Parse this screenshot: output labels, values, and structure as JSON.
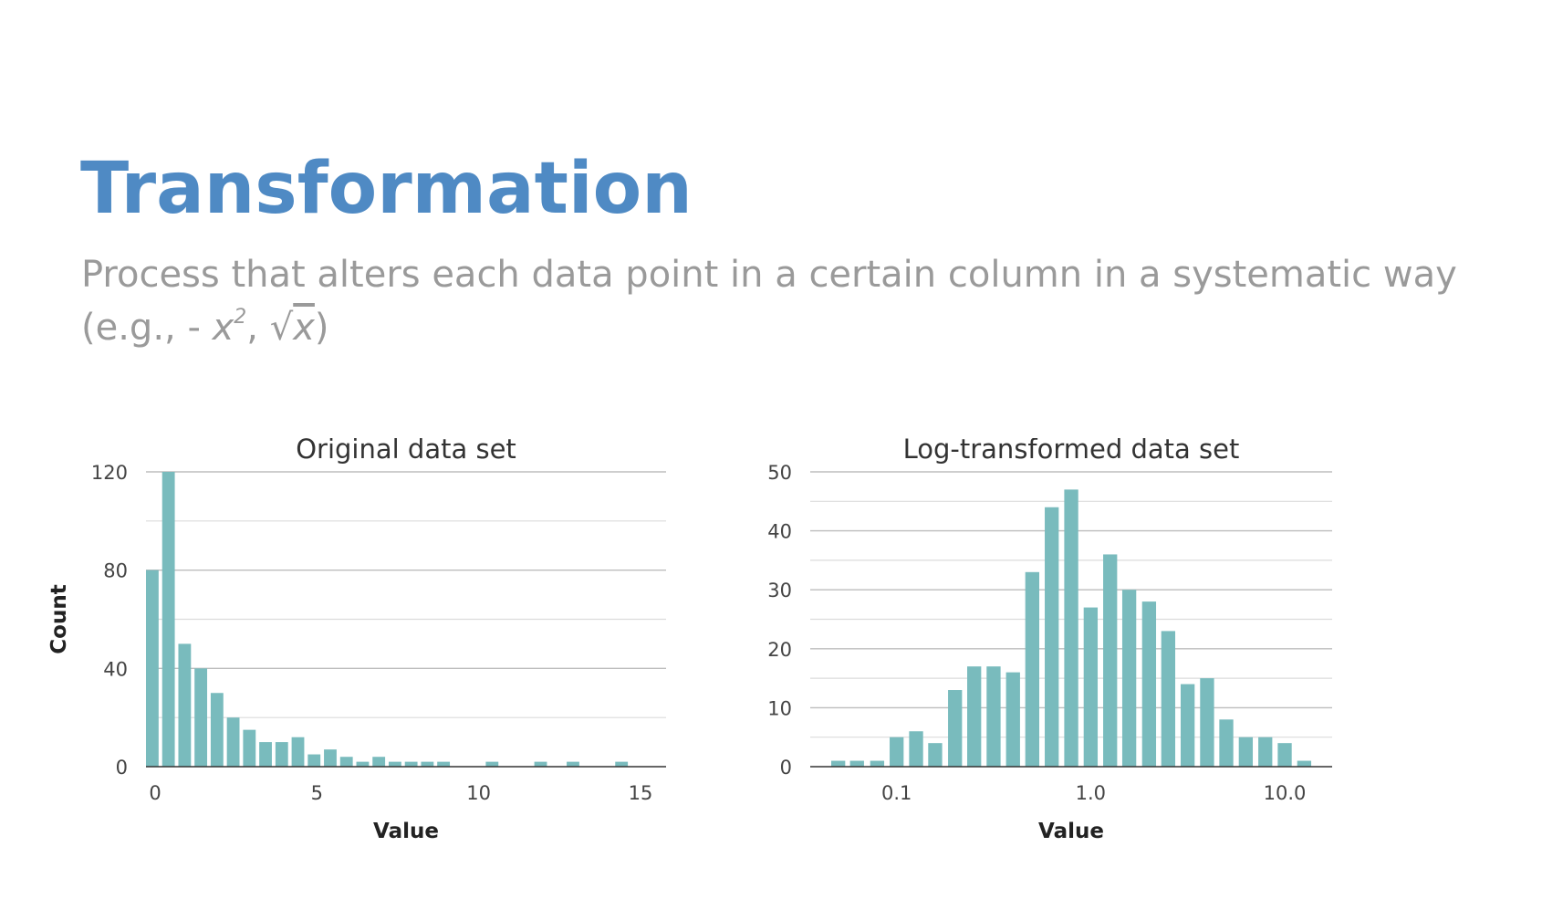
{
  "slide": {
    "title": "Transformation",
    "subtitle_line1": "Process that alters each data point in a certain column in a systematic way",
    "subtitle_line2_prefix": "(e.g., - ",
    "subtitle_x": "x",
    "subtitle_exp": "2",
    "subtitle_sep": ", ",
    "subtitle_sqrt": "√",
    "subtitle_sqrt_x": "x",
    "subtitle_close": ")"
  },
  "colors": {
    "title": "#4f8ac4",
    "subtitle": "#9a9a9a",
    "bar": "#79bbbd",
    "grid": "#cfcfcf",
    "axis": "#333333"
  },
  "chart_data": [
    {
      "type": "bar",
      "title": "Original data set",
      "xlabel": "Value",
      "ylabel": "Count",
      "ylim": [
        0,
        120
      ],
      "xlim": [
        0,
        15
      ],
      "yticks": [
        0,
        40,
        80,
        120
      ],
      "xticks": [
        0,
        5,
        10,
        15
      ],
      "grid": true,
      "bin_width": 0.5,
      "x": [
        0,
        0.5,
        1,
        1.5,
        2,
        2.5,
        3,
        3.5,
        4,
        4.5,
        5,
        5.5,
        6,
        6.5,
        7,
        7.5,
        8,
        8.5,
        9,
        9.5,
        10,
        10.5,
        11,
        11.5,
        12,
        12.5,
        13,
        13.5,
        14,
        14.5
      ],
      "values": [
        80,
        120,
        50,
        40,
        30,
        20,
        15,
        10,
        10,
        12,
        5,
        7,
        4,
        2,
        4,
        2,
        2,
        2,
        2,
        0,
        0,
        2,
        0,
        0,
        2,
        0,
        2,
        0,
        0,
        2
      ]
    },
    {
      "type": "bar",
      "title": "Log-transformed data set",
      "xlabel": "Value",
      "ylabel": "Count",
      "ylim": [
        0,
        50
      ],
      "yticks": [
        0,
        10,
        20,
        30,
        40,
        50
      ],
      "x_scale": "log",
      "xticks": [
        "0.1",
        "1.0",
        "10.0"
      ],
      "grid": true,
      "x": [
        0.05,
        0.0625,
        0.0794,
        0.1,
        0.126,
        0.158,
        0.2,
        0.251,
        0.316,
        0.398,
        0.5,
        0.63,
        0.794,
        1.0,
        1.26,
        1.58,
        2.0,
        2.51,
        3.16,
        3.98,
        5.0,
        6.3,
        7.94,
        10.0,
        12.6
      ],
      "values": [
        1,
        1,
        1,
        5,
        6,
        4,
        13,
        17,
        17,
        16,
        33,
        44,
        47,
        27,
        36,
        30,
        28,
        23,
        14,
        15,
        8,
        5,
        5,
        4,
        1
      ]
    }
  ]
}
